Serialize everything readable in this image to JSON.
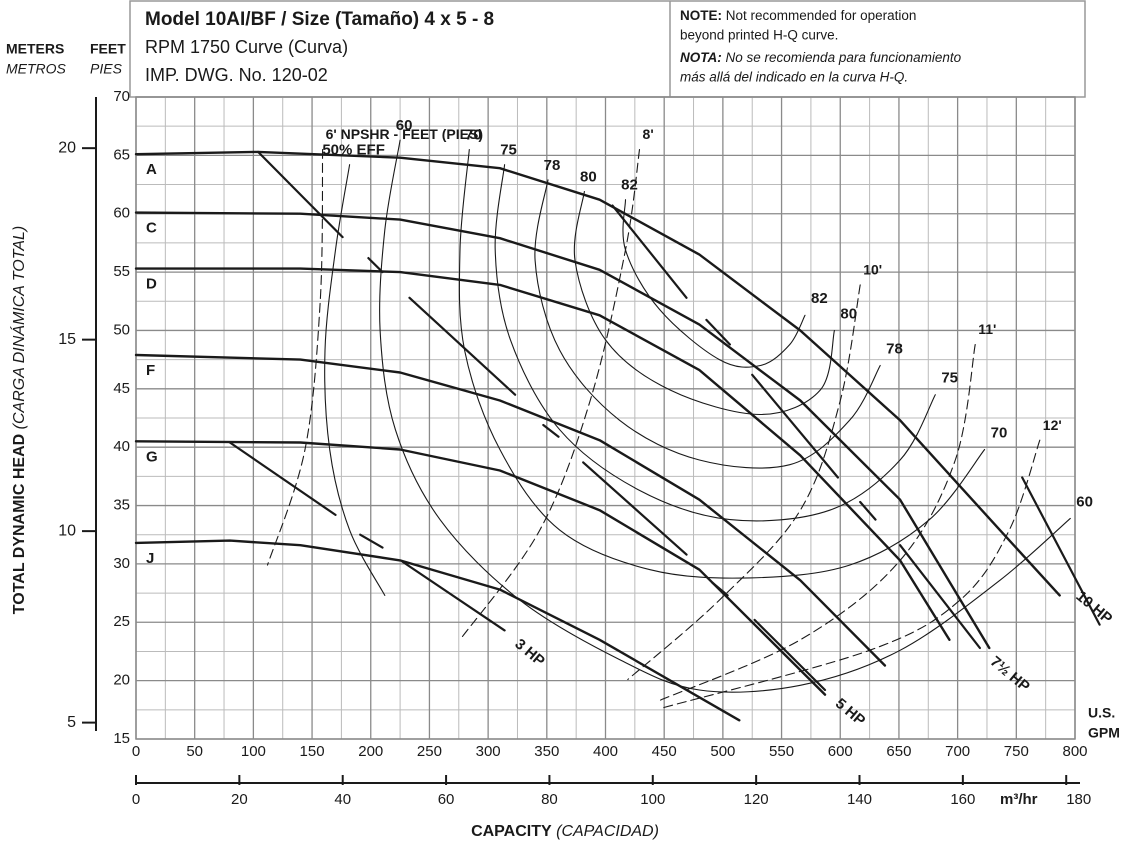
{
  "chart_data": {
    "type": "line",
    "title": "Model 10AI/BF / Size (Tamaño) 4 x 5 - 8",
    "subtitle": "RPM 1750 Curve (Curva)",
    "drawing": "IMP. DWG. No. 120-02",
    "note": {
      "label": "NOTE:",
      "lines": [
        "Not recommended for operation",
        "beyond printed H-Q curve."
      ]
    },
    "nota": {
      "label": "NOTA:",
      "lines": [
        "No se recomienda para funcionamiento",
        "más allá del indicado en la curva H-Q."
      ]
    },
    "y_unit_meters": "METERS",
    "y_unit_feet": "FEET",
    "y_unit_metros": "METROS",
    "y_unit_pies": "PIES",
    "y_label": "TOTAL DYNAMIC HEAD",
    "y_label_es": "(CARGA DINÁMICA TOTAL)",
    "x_label": "CAPACITY",
    "x_label_es": "(CAPACIDAD)",
    "x_unit": [
      "U.S.",
      "GPM"
    ],
    "x2_unit": "m³/hr",
    "color": "#1a1a1a",
    "grid": true,
    "minor_grid": true,
    "xlim": [
      0,
      800
    ],
    "xticks": [
      0,
      50,
      100,
      150,
      200,
      250,
      300,
      350,
      400,
      450,
      500,
      550,
      600,
      650,
      700,
      750,
      800
    ],
    "ylim": [
      15,
      70
    ],
    "yticks": [
      15,
      20,
      25,
      30,
      35,
      40,
      45,
      50,
      55,
      60,
      65,
      70
    ],
    "x2lim": [
      0,
      181.7
    ],
    "x2ticks": [
      0,
      20,
      40,
      60,
      80,
      100,
      120,
      140,
      160,
      180
    ],
    "y2lim": [
      4.572,
      21.336
    ],
    "y2ticks": [
      5,
      10,
      15,
      20
    ],
    "series": [
      {
        "name": "A",
        "kind": "hq",
        "x": [
          0,
          104,
          225,
          310,
          395,
          480,
          566,
          651,
          736,
          787
        ],
        "values": [
          65.1,
          65.3,
          64.8,
          63.9,
          61.2,
          56.5,
          50,
          42.3,
          32.9,
          27.3
        ]
      },
      {
        "name": "C",
        "kind": "hq",
        "x": [
          0,
          140,
          225,
          310,
          395,
          480,
          566,
          651,
          727
        ],
        "values": [
          60.1,
          60,
          59.5,
          57.9,
          55.2,
          50.5,
          44,
          35.5,
          22.8
        ]
      },
      {
        "name": "D",
        "kind": "hq",
        "x": [
          0,
          140,
          225,
          310,
          395,
          480,
          566,
          651,
          693
        ],
        "values": [
          55.3,
          55.3,
          55,
          53.9,
          51.3,
          46.6,
          39.3,
          30.3,
          23.5
        ]
      },
      {
        "name": "F",
        "kind": "hq",
        "x": [
          0,
          140,
          225,
          310,
          395,
          480,
          566,
          638
        ],
        "values": [
          47.9,
          47.5,
          46.4,
          44,
          40.6,
          35.5,
          28.6,
          21.3
        ]
      },
      {
        "name": "G",
        "kind": "hq",
        "x": [
          0,
          140,
          225,
          310,
          395,
          480,
          587
        ],
        "values": [
          40.5,
          40.4,
          39.8,
          38,
          34.6,
          29.5,
          18.8
        ]
      },
      {
        "name": "J",
        "kind": "hq",
        "x": [
          0,
          80,
          140,
          225,
          310,
          395,
          514
        ],
        "values": [
          31.8,
          32,
          31.6,
          30.3,
          27.8,
          23.5,
          16.6
        ]
      },
      {
        "name": "50% EFF",
        "kind": "eff",
        "x": [
          182,
          170,
          161,
          165,
          182,
          212
        ],
        "values": [
          64.2,
          56.9,
          48.3,
          39.8,
          32.9,
          27.3
        ]
      },
      {
        "name": "60",
        "kind": "eff",
        "x": [
          225,
          212,
          208,
          221,
          259,
          327,
          412,
          480,
          566,
          651,
          736,
          796
        ],
        "values": [
          66.3,
          58.6,
          50,
          41.5,
          33.8,
          26.9,
          21.8,
          19.2,
          19.6,
          22.6,
          28.6,
          33.9
        ]
      },
      {
        "name": "70",
        "kind": "eff",
        "x": [
          284,
          276,
          280,
          310,
          361,
          438,
          523,
          608,
          676,
          723
        ],
        "values": [
          65.5,
          56.9,
          48.3,
          39.8,
          32.9,
          29.5,
          28.8,
          29.9,
          33.8,
          39.8
        ]
      },
      {
        "name": "75",
        "kind": "eff",
        "x": [
          314,
          306,
          319,
          361,
          429,
          506,
          591,
          651,
          681
        ],
        "values": [
          64.2,
          56.9,
          49.2,
          41.5,
          36.3,
          33.8,
          34.6,
          38.9,
          44.5
        ]
      },
      {
        "name": "78",
        "kind": "eff",
        "x": [
          351,
          340,
          361,
          412,
          480,
          557,
          608,
          634
        ],
        "values": [
          62.9,
          56,
          48.3,
          42.3,
          38.9,
          38.5,
          42.3,
          47
        ]
      },
      {
        "name": "80",
        "kind": "eff",
        "x": [
          382,
          374,
          400,
          455,
          532,
          583,
          595
        ],
        "values": [
          61.9,
          56,
          49.2,
          44.9,
          42.8,
          44.9,
          50
        ]
      },
      {
        "name": "82",
        "kind": "eff",
        "x": [
          417,
          417,
          446,
          497,
          532,
          557,
          570
        ],
        "values": [
          61.2,
          56.9,
          51.8,
          47.5,
          47,
          48.8,
          51.3
        ]
      },
      {
        "name": "6' NPSHR - FEET (PIES)",
        "kind": "npsh",
        "x": [
          159,
          157,
          144,
          112
        ],
        "values": [
          65.5,
          52.6,
          39.8,
          29.9
        ]
      },
      {
        "name": "8'",
        "kind": "npsh",
        "x": [
          429,
          417,
          387,
          344,
          276
        ],
        "values": [
          65.5,
          56.9,
          44,
          32.9,
          23.5
        ]
      },
      {
        "name": "10'",
        "kind": "npsh",
        "x": [
          617,
          600,
          566,
          497,
          419
        ],
        "values": [
          53.9,
          44,
          34.6,
          26.9,
          20.1
        ]
      },
      {
        "name": "11'",
        "kind": "npsh",
        "x": [
          715,
          698,
          651,
          566,
          446
        ],
        "values": [
          48.8,
          38.9,
          30.3,
          23.5,
          18.3
        ]
      },
      {
        "name": "12'",
        "kind": "npsh",
        "x": [
          770,
          744,
          702,
          625,
          446
        ],
        "values": [
          40.6,
          32.9,
          26.9,
          22.6,
          17.6
        ]
      },
      {
        "name": "3 HP",
        "kind": "hp",
        "x": [
          80,
          170,
          null,
          191,
          210,
          null,
          227,
          314
        ],
        "values": [
          40.4,
          34.2,
          null,
          32.5,
          31.4,
          null,
          30.2,
          24.3
        ]
      },
      {
        "name": "5 HP",
        "kind": "hp",
        "x": [
          104,
          176,
          null,
          198,
          210,
          null,
          233,
          323,
          null,
          347,
          360,
          null,
          381,
          469,
          null,
          491,
          504,
          null,
          527,
          587
        ],
        "values": [
          65.3,
          58,
          null,
          56.2,
          55,
          null,
          52.8,
          44.5,
          null,
          41.9,
          40.9,
          null,
          38.7,
          30.8,
          null,
          28.4,
          27.3,
          null,
          25.2,
          19.2
        ]
      },
      {
        "name": "7½ HP",
        "kind": "hp",
        "x": [
          406,
          469,
          null,
          486,
          506,
          null,
          525,
          598,
          null,
          617,
          630,
          null,
          651,
          719
        ],
        "values": [
          60.7,
          52.8,
          null,
          50.9,
          48.8,
          null,
          46.2,
          37.4,
          null,
          35.3,
          33.8,
          null,
          31.6,
          22.8
        ]
      },
      {
        "name": "10 HP",
        "kind": "hp",
        "x": [
          755,
          821
        ],
        "values": [
          37.4,
          24.8
        ]
      }
    ]
  }
}
